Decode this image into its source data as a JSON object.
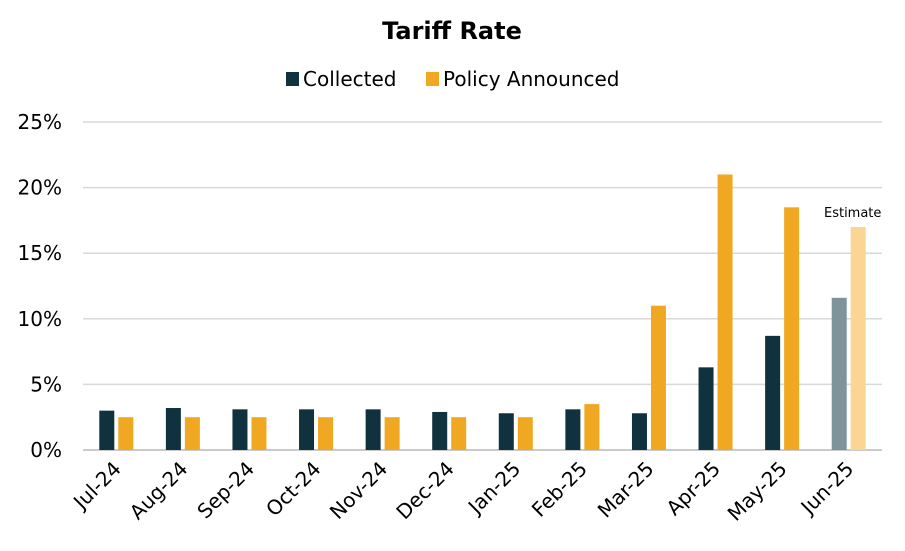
{
  "chart_data": {
    "type": "bar",
    "title": "Tariff Rate",
    "xlabel": "",
    "ylabel": "",
    "categories": [
      "Jul-24",
      "Aug-24",
      "Sep-24",
      "Oct-24",
      "Nov-24",
      "Dec-24",
      "Jan-25",
      "Feb-25",
      "Mar-25",
      "Apr-25",
      "May-25",
      "Jun-25"
    ],
    "series": [
      {
        "name": "Collected",
        "color": "#10323f",
        "values": [
          3.0,
          3.2,
          3.1,
          3.1,
          3.1,
          2.9,
          2.8,
          3.1,
          2.8,
          6.3,
          8.7,
          11.6
        ]
      },
      {
        "name": "Policy Announced",
        "color": "#f0a823",
        "values": [
          2.5,
          2.5,
          2.5,
          2.5,
          2.5,
          2.5,
          2.5,
          3.5,
          11.0,
          21.0,
          18.5,
          17.0
        ]
      }
    ],
    "estimate_category": "Jun-25",
    "estimate_colors": {
      "Collected": "#7e939a",
      "Policy Announced": "#fbd594"
    },
    "annotation": "Estimate",
    "ylim": [
      0,
      25
    ],
    "yticks": [
      0,
      5,
      10,
      15,
      20,
      25
    ],
    "ytick_format": "percent",
    "grid": true,
    "legend_position": "top-center"
  }
}
